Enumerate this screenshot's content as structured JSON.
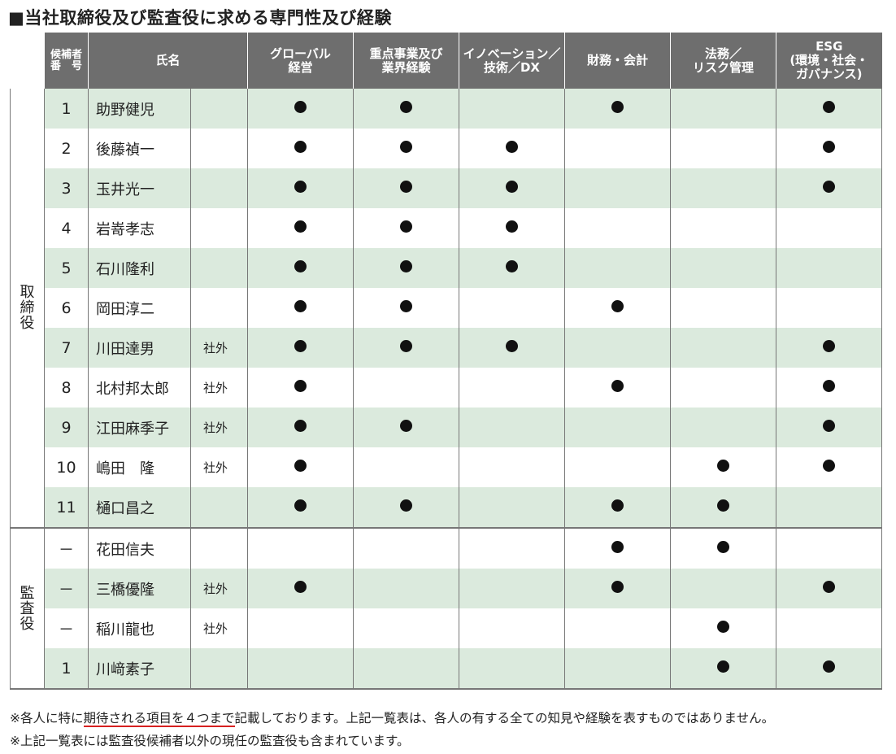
{
  "title": "■当社取締役及び監査役に求める専門性及び経験",
  "headers": {
    "number": "候補者\n番　号",
    "name": "氏名",
    "skills": [
      "グローバル\n経営",
      "重点事業及び\n業界経験",
      "イノベーション／\n技術／DX",
      "財務・会計",
      "法務／\nリスク管理",
      "ESG\n(環境・社会・\nガバナンス)"
    ]
  },
  "groups": [
    {
      "label": "取\n締\n役",
      "rows": [
        {
          "number": "1",
          "name": "助野健児",
          "tag": "",
          "marks": [
            true,
            true,
            false,
            true,
            false,
            true
          ]
        },
        {
          "number": "2",
          "name": "後藤禎一",
          "tag": "",
          "marks": [
            true,
            true,
            true,
            false,
            false,
            true
          ]
        },
        {
          "number": "3",
          "name": "玉井光一",
          "tag": "",
          "marks": [
            true,
            true,
            true,
            false,
            false,
            true
          ]
        },
        {
          "number": "4",
          "name": "岩嵜孝志",
          "tag": "",
          "marks": [
            true,
            true,
            true,
            false,
            false,
            false
          ]
        },
        {
          "number": "5",
          "name": "石川隆利",
          "tag": "",
          "marks": [
            true,
            true,
            true,
            false,
            false,
            false
          ]
        },
        {
          "number": "6",
          "name": "岡田淳二",
          "tag": "",
          "marks": [
            true,
            true,
            false,
            true,
            false,
            false
          ]
        },
        {
          "number": "7",
          "name": "川田達男",
          "tag": "社外",
          "marks": [
            true,
            true,
            true,
            false,
            false,
            true
          ]
        },
        {
          "number": "8",
          "name": "北村邦太郎",
          "tag": "社外",
          "marks": [
            true,
            false,
            false,
            true,
            false,
            true
          ]
        },
        {
          "number": "9",
          "name": "江田麻季子",
          "tag": "社外",
          "marks": [
            true,
            true,
            false,
            false,
            false,
            true
          ]
        },
        {
          "number": "10",
          "name": "嶋田　隆",
          "tag": "社外",
          "marks": [
            true,
            false,
            false,
            false,
            true,
            true
          ]
        },
        {
          "number": "11",
          "name": "樋口昌之",
          "tag": "",
          "marks": [
            true,
            true,
            false,
            true,
            true,
            false
          ]
        }
      ]
    },
    {
      "label": "監\n査\n役",
      "rows": [
        {
          "number": "－",
          "name": "花田信夫",
          "tag": "",
          "marks": [
            false,
            false,
            false,
            true,
            true,
            false
          ]
        },
        {
          "number": "－",
          "name": "三橋優隆",
          "tag": "社外",
          "marks": [
            true,
            false,
            false,
            true,
            false,
            true
          ]
        },
        {
          "number": "－",
          "name": "稲川龍也",
          "tag": "社外",
          "marks": [
            false,
            false,
            false,
            false,
            true,
            false
          ]
        },
        {
          "number": "1",
          "name": "川﨑素子",
          "tag": "",
          "marks": [
            false,
            false,
            false,
            false,
            true,
            true
          ]
        }
      ]
    }
  ],
  "notes": {
    "line1_pre": "※各人に特に",
    "line1_highlight": "期待される項目を４つまで",
    "line1_post": "記載しております。上記一覧表は、各人の有する全ての知見や経験を表すものではありません。",
    "line2": "※上記一覧表には監査役候補者以外の現任の監査役も含まれています。"
  },
  "colors": {
    "header_bg": "#6e6e6e",
    "row_stripe": "#dbeadd",
    "highlight_underline": "#d62020"
  }
}
